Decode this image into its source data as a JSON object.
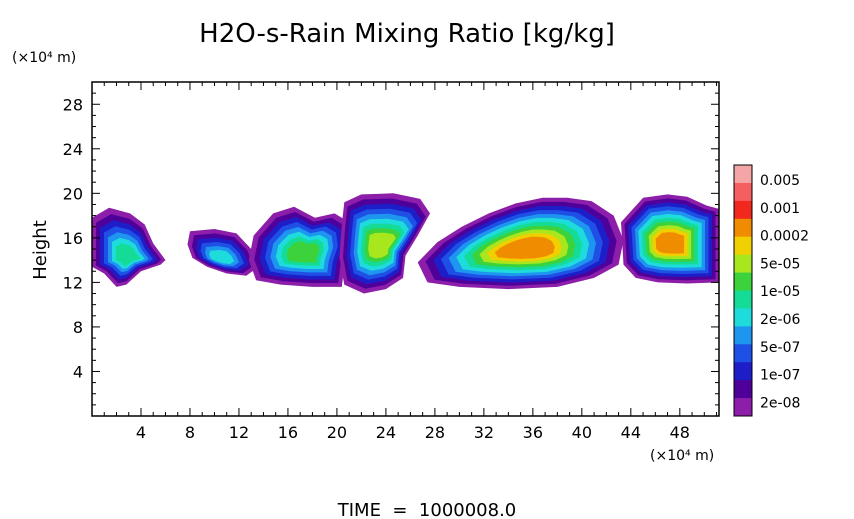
{
  "chart_data": {
    "type": "heatmap",
    "title": "H2O-s-Rain Mixing Ratio [kg/kg]",
    "xlabel": "",
    "ylabel": "Height",
    "x_unit": "(×10⁴ m)",
    "y_unit": "(×10⁴ m)",
    "xlim": [
      0,
      51.2
    ],
    "ylim": [
      0,
      30
    ],
    "x_ticks": [
      4,
      8,
      12,
      16,
      20,
      24,
      28,
      32,
      36,
      40,
      44,
      48
    ],
    "y_ticks": [
      4,
      8,
      12,
      16,
      20,
      24,
      28
    ],
    "colorbar": {
      "labels": [
        "0.005",
        "0.001",
        "0.0002",
        "5e-05",
        "1e-05",
        "2e-06",
        "5e-07",
        "1e-07",
        "2e-08"
      ],
      "colors": [
        "#f4a6a6",
        "#f46060",
        "#f0281e",
        "#f08c00",
        "#f0d000",
        "#a8e61e",
        "#3cd23c",
        "#14dc96",
        "#1edcdc",
        "#1e96f0",
        "#1e50e6",
        "#1e1ec8",
        "#50009a",
        "#8c1eaa"
      ]
    },
    "footer": "TIME  =  1000008.0",
    "clouds": [
      {
        "name": "cloud-left",
        "outline": [
          [
            0,
            17.8
          ],
          [
            1.4,
            18.7
          ],
          [
            3.1,
            18.2
          ],
          [
            4.3,
            17.2
          ],
          [
            5.0,
            15.5
          ],
          [
            6.0,
            14.0
          ],
          [
            5.6,
            13.6
          ],
          [
            4.0,
            13.0
          ],
          [
            2.8,
            11.8
          ],
          [
            2.0,
            11.6
          ],
          [
            1.0,
            12.8
          ],
          [
            0,
            13.4
          ]
        ],
        "peak_level": 7
      },
      {
        "name": "cloud-x10",
        "outline": [
          [
            8.0,
            16.6
          ],
          [
            10.0,
            16.8
          ],
          [
            11.8,
            16.4
          ],
          [
            13.0,
            15.0
          ],
          [
            13.6,
            13.4
          ],
          [
            12.6,
            12.6
          ],
          [
            11.0,
            12.8
          ],
          [
            9.4,
            13.4
          ],
          [
            8.2,
            14.2
          ],
          [
            7.8,
            15.4
          ]
        ],
        "peak_level": 8
      },
      {
        "name": "cloud-x19",
        "outline": [
          [
            13.2,
            16.2
          ],
          [
            14.8,
            18.2
          ],
          [
            16.5,
            18.8
          ],
          [
            18.2,
            17.8
          ],
          [
            19.8,
            18.2
          ],
          [
            21.0,
            17.4
          ],
          [
            21.2,
            15.6
          ],
          [
            20.6,
            13.4
          ],
          [
            20.4,
            11.6
          ],
          [
            18.0,
            11.6
          ],
          [
            15.4,
            11.8
          ],
          [
            13.4,
            12.2
          ],
          [
            12.8,
            14.0
          ]
        ],
        "peak_level": 6
      },
      {
        "name": "cloud-x24",
        "outline": [
          [
            20.6,
            19.2
          ],
          [
            22.0,
            19.9
          ],
          [
            24.6,
            20.0
          ],
          [
            26.8,
            19.5
          ],
          [
            27.6,
            18.2
          ],
          [
            26.6,
            16.2
          ],
          [
            25.6,
            14.4
          ],
          [
            25.4,
            12.4
          ],
          [
            24.0,
            11.4
          ],
          [
            22.2,
            11.0
          ],
          [
            20.6,
            11.8
          ],
          [
            20.2,
            14.2
          ],
          [
            20.4,
            17.2
          ]
        ],
        "peak_level": 5
      },
      {
        "name": "cloud-x35",
        "outline": [
          [
            26.6,
            13.8
          ],
          [
            28.2,
            15.6
          ],
          [
            30.2,
            17.0
          ],
          [
            32.4,
            18.2
          ],
          [
            34.6,
            19.1
          ],
          [
            36.8,
            19.6
          ],
          [
            38.8,
            19.6
          ],
          [
            40.8,
            19.3
          ],
          [
            42.6,
            18.0
          ],
          [
            43.4,
            15.8
          ],
          [
            43.0,
            13.6
          ],
          [
            41.0,
            12.4
          ],
          [
            38.0,
            11.6
          ],
          [
            34.0,
            11.4
          ],
          [
            30.0,
            11.6
          ],
          [
            27.4,
            12.0
          ]
        ],
        "peak_level": 3
      },
      {
        "name": "cloud-right",
        "outline": [
          [
            43.2,
            17.4
          ],
          [
            45.0,
            19.6
          ],
          [
            47.0,
            19.9
          ],
          [
            48.6,
            19.7
          ],
          [
            50.2,
            18.9
          ],
          [
            51.2,
            18.6
          ],
          [
            51.2,
            12.0
          ],
          [
            48.6,
            11.9
          ],
          [
            46.2,
            12.0
          ],
          [
            44.4,
            12.4
          ],
          [
            43.4,
            13.6
          ]
        ],
        "peak_level": 3
      }
    ]
  }
}
